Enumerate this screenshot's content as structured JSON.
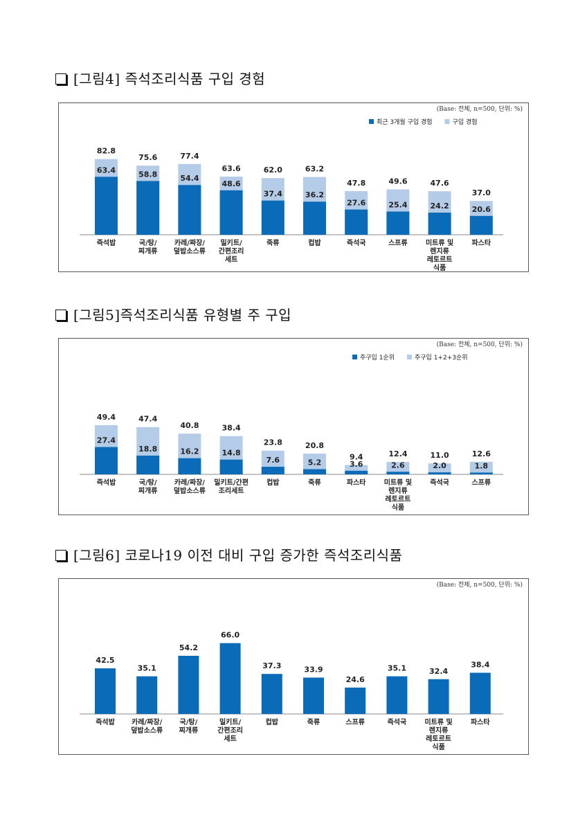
{
  "sections": [
    {
      "title": "[그림4] 즉석조리식품 구입 경험"
    },
    {
      "title": "[그림5]즉석조리식품 유형별 주 구입"
    },
    {
      "title": "[그림6] 코로나19 이전 대비 구입 증가한 즉석조리식품"
    }
  ],
  "colors": {
    "dark": "#0a6cb8",
    "light": "#b5cce8",
    "axis": "#888888"
  },
  "chart_data": [
    {
      "type": "bar",
      "stacked_overlay": true,
      "note": "(Base: 전체, n=500, 단위: %)",
      "categories": [
        [
          "즉석밥"
        ],
        [
          "국/탕/",
          "찌개류"
        ],
        [
          "카레/짜장/",
          "덮밥소스류"
        ],
        [
          "밀키트/",
          "간편조리",
          "세트"
        ],
        [
          "죽류"
        ],
        [
          "컵밥"
        ],
        [
          "즉석국"
        ],
        [
          "스프류"
        ],
        [
          "미트류 및",
          "렌지류",
          "레토르트",
          "식품"
        ],
        [
          "파스타"
        ]
      ],
      "series": [
        {
          "name": "최근 3개월 구입 경험",
          "values": [
            63.4,
            58.8,
            54.4,
            48.6,
            37.4,
            36.2,
            27.6,
            25.4,
            24.2,
            20.6
          ]
        },
        {
          "name": "구입 경험",
          "values": [
            82.8,
            75.6,
            77.4,
            63.6,
            62.0,
            63.2,
            47.8,
            49.6,
            47.6,
            37.0
          ]
        }
      ],
      "ylim": [
        0,
        100
      ]
    },
    {
      "type": "bar",
      "stacked_overlay": true,
      "note": "(Base: 전체, n=500, 단위: %)",
      "categories": [
        [
          "즉석밥"
        ],
        [
          "국/탕/",
          "찌개류"
        ],
        [
          "카레/짜장/",
          "덮밥소스류"
        ],
        [
          "밀키트/간편",
          "조리세트"
        ],
        [
          "컵밥"
        ],
        [
          "죽류"
        ],
        [
          "파스타"
        ],
        [
          "미트류 및",
          "렌지류",
          "레토르트",
          "식품"
        ],
        [
          "즉석국"
        ],
        [
          "스프류"
        ]
      ],
      "series": [
        {
          "name": "주구입 1순위",
          "values": [
            27.4,
            18.8,
            16.2,
            14.8,
            7.6,
            5.2,
            3.6,
            2.6,
            2.0,
            1.8
          ]
        },
        {
          "name": "주구입 1+2+3순위",
          "values": [
            49.4,
            47.4,
            40.8,
            38.4,
            23.8,
            20.8,
            9.4,
            12.4,
            11.0,
            12.6
          ]
        }
      ],
      "ylim": [
        0,
        60
      ]
    },
    {
      "type": "bar",
      "note": "(Base: 전체, n=500, 단위: %)",
      "categories": [
        [
          "즉석밥"
        ],
        [
          "카레/짜장/",
          "덮밥소스류"
        ],
        [
          "국/탕/",
          "찌개류"
        ],
        [
          "밀키트/",
          "간편조리",
          "세트"
        ],
        [
          "컵밥"
        ],
        [
          "죽류"
        ],
        [
          "스프류"
        ],
        [
          "즉석국"
        ],
        [
          "미트류 및",
          "렌지류",
          "레토르트",
          "식품"
        ],
        [
          "파스타"
        ]
      ],
      "series": [
        {
          "values": [
            42.5,
            35.1,
            54.2,
            66.0,
            37.3,
            33.9,
            24.6,
            35.1,
            32.4,
            38.4
          ]
        }
      ],
      "ylim": [
        0,
        80
      ]
    }
  ]
}
